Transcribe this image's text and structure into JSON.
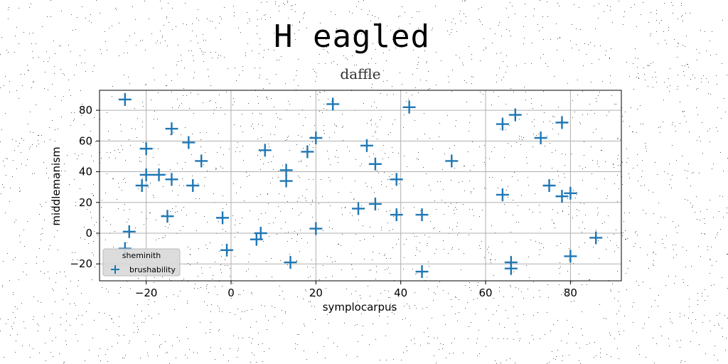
{
  "chart_data": {
    "type": "scatter",
    "title": "H eagled",
    "subtitle": "daffle",
    "xlabel": "symplocarpus",
    "ylabel": "middlemanism",
    "xlim": [
      -31,
      92
    ],
    "ylim": [
      -31,
      93
    ],
    "xticks": [
      -20,
      0,
      20,
      40,
      60,
      80
    ],
    "yticks": [
      -20,
      0,
      20,
      40,
      60,
      80
    ],
    "grid": true,
    "legend": {
      "title": "sheminith",
      "placement": "lower-left"
    },
    "series": [
      {
        "name": "brushability",
        "marker": "plus",
        "color": "#1f77b4",
        "points": [
          [
            -25,
            87
          ],
          [
            -24,
            1
          ],
          [
            -25,
            -10
          ],
          [
            -21,
            31
          ],
          [
            -20,
            38
          ],
          [
            -20,
            55
          ],
          [
            -17,
            38
          ],
          [
            -15,
            11
          ],
          [
            -14,
            35
          ],
          [
            -14,
            68
          ],
          [
            -10,
            59
          ],
          [
            -9,
            31
          ],
          [
            -7,
            47
          ],
          [
            -2,
            10
          ],
          [
            -1,
            -11
          ],
          [
            6,
            -4
          ],
          [
            7,
            0
          ],
          [
            8,
            54
          ],
          [
            13,
            34
          ],
          [
            13,
            41
          ],
          [
            14,
            -19
          ],
          [
            18,
            53
          ],
          [
            20,
            62
          ],
          [
            20,
            3
          ],
          [
            24,
            84
          ],
          [
            30,
            16
          ],
          [
            32,
            57
          ],
          [
            34,
            45
          ],
          [
            34,
            19
          ],
          [
            39,
            35
          ],
          [
            39,
            12
          ],
          [
            42,
            82
          ],
          [
            45,
            12
          ],
          [
            45,
            -25
          ],
          [
            52,
            47
          ],
          [
            64,
            71
          ],
          [
            64,
            25
          ],
          [
            66,
            -23
          ],
          [
            66,
            -19
          ],
          [
            67,
            77
          ],
          [
            73,
            62
          ],
          [
            75,
            31
          ],
          [
            78,
            72
          ],
          [
            78,
            24
          ],
          [
            80,
            26
          ],
          [
            80,
            -15
          ],
          [
            86,
            -3
          ]
        ]
      }
    ]
  }
}
